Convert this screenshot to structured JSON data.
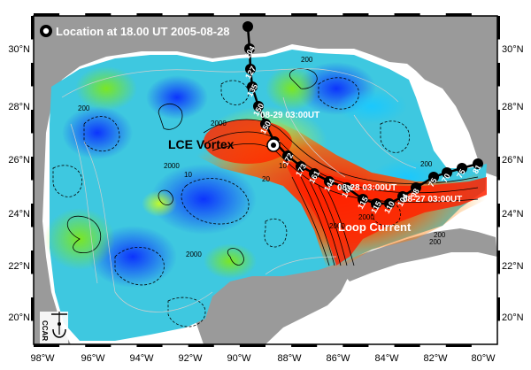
{
  "map": {
    "legend": "Location at 18.00 UT 2005-08-28",
    "features": {
      "lce_vortex": "LCE Vortex",
      "loop_current": "Loop Current"
    },
    "track_times": {
      "t1": "08-29 03:00UT",
      "t2": "08-28 03:00UT",
      "t3": "08-27 03:00UT"
    },
    "track_values": [
      "81",
      "75",
      "70",
      "75",
      "98",
      "104",
      "110",
      "115",
      "115",
      "144",
      "144",
      "161",
      "173",
      "172",
      "161",
      "150",
      "150",
      "135",
      "127",
      "104"
    ],
    "contour_labels": [
      "200",
      "2000",
      "200",
      "2000",
      "200",
      "10",
      "2000",
      "2000",
      "200",
      "20",
      "10",
      "200",
      "2000"
    ],
    "lon_ticks": [
      "98°W",
      "96°W",
      "94°W",
      "92°W",
      "90°W",
      "88°W",
      "86°W",
      "84°W",
      "82°W",
      "80°W"
    ],
    "lat_ticks": [
      "20°N",
      "22°N",
      "24°N",
      "26°N",
      "28°N",
      "30°N"
    ],
    "logo_text": "CCAR",
    "colors": {
      "land": "#9a9a9a",
      "ocean_low": "#1a3cff",
      "ocean_mid": "#3ad23a",
      "ocean_high": "#ff2a00",
      "track": "#000000"
    }
  }
}
